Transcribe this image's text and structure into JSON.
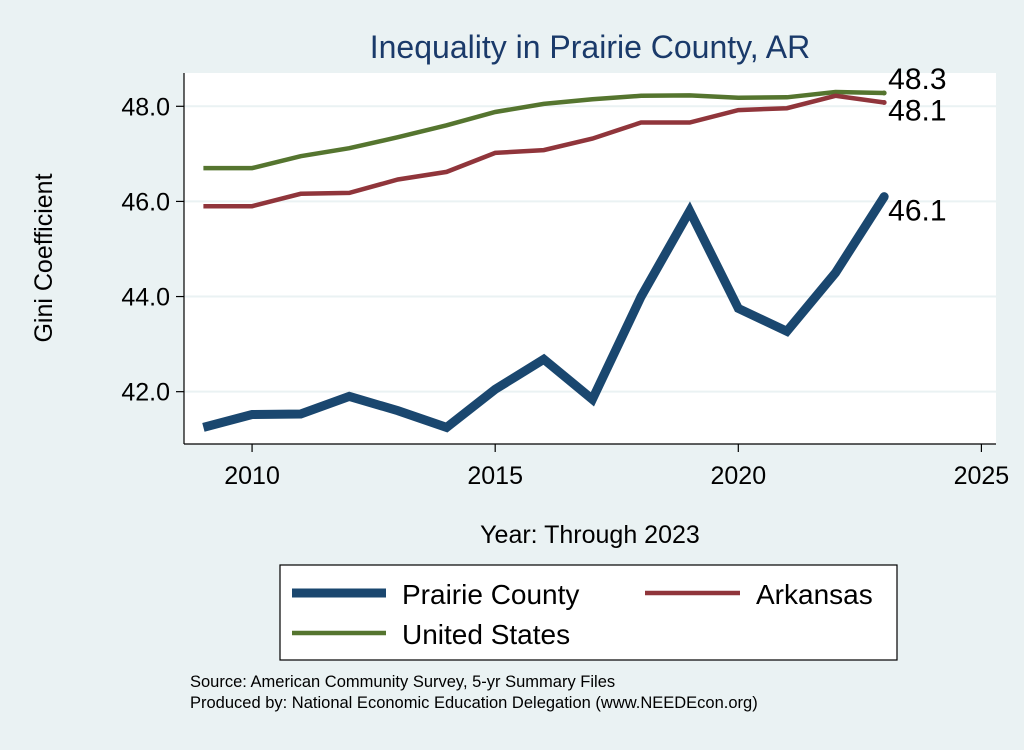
{
  "chart_data": {
    "type": "line",
    "title": "Inequality in Prairie County, AR",
    "xlabel": "Year: Through 2023",
    "ylabel": "Gini Coefficient",
    "xlim": [
      2008.6,
      2025.3
    ],
    "ylim": [
      40.9,
      48.7
    ],
    "x_ticks": [
      2010,
      2015,
      2020,
      2025
    ],
    "y_ticks": [
      42.0,
      44.0,
      46.0,
      48.0
    ],
    "y_tick_labels": [
      "42.0",
      "44.0",
      "46.0",
      "48.0"
    ],
    "grid": true,
    "legend_position": "bottom",
    "x": [
      2009,
      2010,
      2011,
      2012,
      2013,
      2014,
      2015,
      2016,
      2017,
      2018,
      2019,
      2020,
      2021,
      2022,
      2023
    ],
    "series": [
      {
        "name": "Prairie County",
        "color": "#1a476f",
        "values": [
          41.25,
          41.52,
          41.53,
          41.9,
          41.6,
          41.25,
          42.05,
          42.68,
          41.84,
          44.0,
          45.8,
          43.75,
          43.27,
          44.5,
          46.1
        ],
        "end_label": "46.1"
      },
      {
        "name": "Arkansas",
        "color": "#90353b",
        "values": [
          45.9,
          45.9,
          46.16,
          46.18,
          46.46,
          46.62,
          47.02,
          47.08,
          47.32,
          47.66,
          47.66,
          47.92,
          47.96,
          48.22,
          48.08
        ],
        "end_label": "48.1"
      },
      {
        "name": "United States",
        "color": "#55752f",
        "values": [
          46.7,
          46.7,
          46.95,
          47.12,
          47.35,
          47.6,
          47.88,
          48.05,
          48.15,
          48.22,
          48.23,
          48.18,
          48.19,
          48.3,
          48.28
        ],
        "end_label": "48.3"
      }
    ],
    "notes": [
      "Source: American Community Survey, 5-yr Summary Files",
      "Produced by: National Economic Education Delegation (www.NEEDEcon.org)"
    ]
  }
}
